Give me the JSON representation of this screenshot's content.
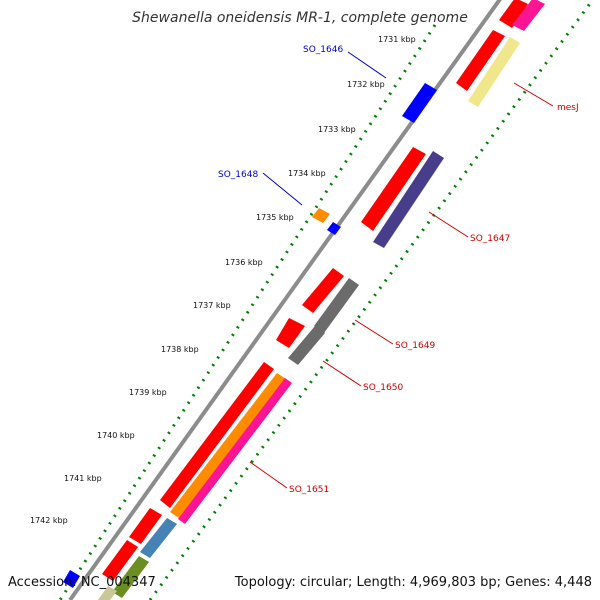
{
  "title": "Shewanella oneidensis MR-1, complete genome",
  "footer": {
    "accession": "Accession: NC_004347",
    "summary": "Topology: circular; Length: 4,969,803 bp; Genes: 4,448"
  },
  "ticks": [
    "1731 kbp",
    "1732 kbp",
    "1733 kbp",
    "1734 kbp",
    "1735 kbp",
    "1736 kbp",
    "1737 kbp",
    "1738 kbp",
    "1739 kbp",
    "1740 kbp",
    "1741 kbp",
    "1742 kbp"
  ],
  "gene_labels": [
    {
      "text": "SO_1646",
      "color": "#0000cc"
    },
    {
      "text": "SO_1648",
      "color": "#0000cc"
    },
    {
      "text": "mesJ",
      "color": "#cc0000"
    },
    {
      "text": "SO_1647",
      "color": "#cc0000"
    },
    {
      "text": "SO_1649",
      "color": "#cc0000"
    },
    {
      "text": "SO_1650",
      "color": "#cc0000"
    },
    {
      "text": "SO_1651",
      "color": "#cc0000"
    }
  ],
  "colors": {
    "backbone": "#8c8c8c",
    "forward_cds": "#ff0000",
    "reverse_cds": "#0000ff",
    "dots": "#008000",
    "mesJ_feature": "#f0e68c",
    "SO_1647_feature": "#483d8b",
    "SO_1649_feature": "#6b6b6b",
    "SO_1650_feature": "#6b6b6b",
    "SO_1651_feature": "#ff8c00",
    "pink_feature": "#ff1493",
    "steel_feature": "#4682b4",
    "olive_feature": "#6b8e23"
  }
}
